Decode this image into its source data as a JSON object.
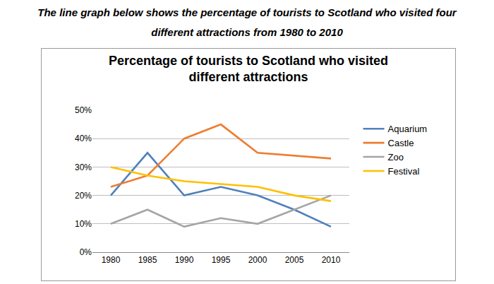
{
  "chart_data": {
    "type": "line",
    "title": "Percentage of tourists to Scotland who visited different attractions",
    "annotations": [
      "The line graph below shows the percentage of tourists to Scotland who visited four different attractions from 1980 to 2010"
    ],
    "categories": [
      "1980",
      "1985",
      "1990",
      "1995",
      "2000",
      "2005",
      "2010"
    ],
    "series": [
      {
        "name": "Aquarium",
        "color": "#4f81bd",
        "values": [
          20,
          35,
          20,
          23,
          20,
          15,
          9
        ]
      },
      {
        "name": "Castle",
        "color": "#ed7d31",
        "values": [
          23,
          27,
          40,
          45,
          35,
          34,
          33
        ]
      },
      {
        "name": "Zoo",
        "color": "#a5a5a5",
        "values": [
          10,
          15,
          9,
          12,
          10,
          15,
          20
        ]
      },
      {
        "name": "Festival",
        "color": "#ffc000",
        "values": [
          30,
          27,
          25,
          24,
          23,
          20,
          18
        ]
      }
    ],
    "ylim": [
      0,
      50
    ],
    "yticks": [
      {
        "value": 0,
        "label": "0%"
      },
      {
        "value": 10,
        "label": "10%"
      },
      {
        "value": 20,
        "label": "20%"
      },
      {
        "value": 30,
        "label": "30%"
      },
      {
        "value": 40,
        "label": "40%"
      },
      {
        "value": 50,
        "label": "50%"
      }
    ],
    "grid": true,
    "legend": "right"
  }
}
